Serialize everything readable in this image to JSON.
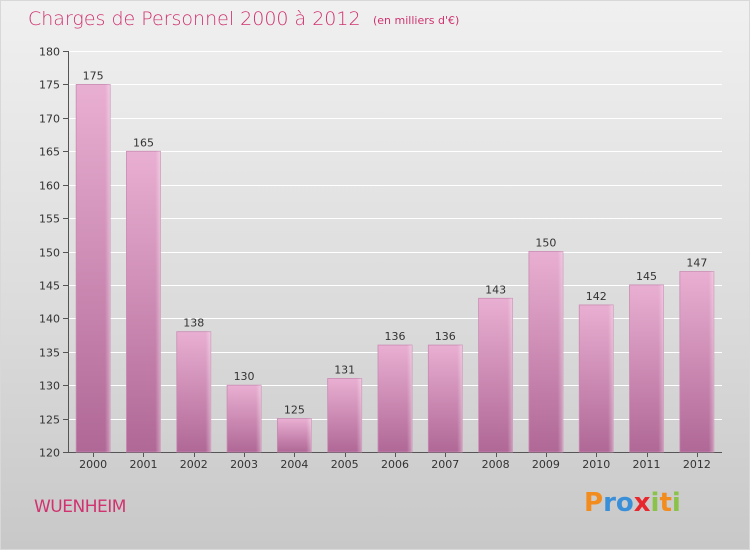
{
  "header": {
    "title": "Charges de Personnel 2000 à 2012",
    "subtitle": "(en milliers d'€)"
  },
  "footer": {
    "town": "WUENHEIM",
    "logo_text": "Proxiti",
    "logo_colors": [
      "#f28c1e",
      "#3a8fd9",
      "#3a8fd9",
      "#e8262e",
      "#8bc34a",
      "#f28c1e",
      "#8bc34a"
    ]
  },
  "colors": {
    "title": "#d0336f",
    "bar_top": "#e9afd2",
    "bar_bottom": "#b36a98",
    "axis": "#555555",
    "grid": "#ffffff"
  },
  "chart_data": {
    "type": "bar",
    "title": "Charges de Personnel 2000 à 2012",
    "subtitle": "(en milliers d'€)",
    "categories": [
      "2000",
      "2001",
      "2002",
      "2003",
      "2004",
      "2005",
      "2006",
      "2007",
      "2008",
      "2009",
      "2010",
      "2011",
      "2012"
    ],
    "values": [
      175,
      165,
      138,
      130,
      125,
      131,
      136,
      136,
      143,
      150,
      142,
      145,
      147
    ],
    "ylim": [
      120,
      180
    ],
    "yticks": [
      120,
      125,
      130,
      135,
      140,
      145,
      150,
      155,
      160,
      165,
      170,
      175,
      180
    ],
    "grid": true,
    "xlabel": "",
    "ylabel": ""
  }
}
